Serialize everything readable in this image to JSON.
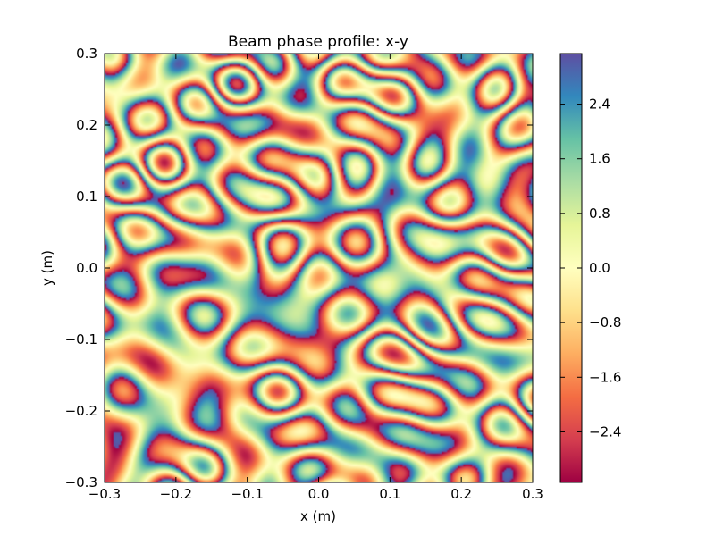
{
  "chart_data": {
    "type": "heatmap",
    "title": "Beam phase profile: x-y",
    "xlabel": "x (m)",
    "ylabel": "y (m)",
    "xlim": [
      -0.3,
      0.3
    ],
    "ylim": [
      -0.3,
      0.3
    ],
    "x_ticks": [
      -0.3,
      -0.2,
      -0.1,
      0.0,
      0.1,
      0.2,
      0.3
    ],
    "x_tick_labels": [
      "−0.3",
      "−0.2",
      "−0.1",
      "0.0",
      "0.1",
      "0.2",
      "0.3"
    ],
    "y_ticks": [
      -0.3,
      -0.2,
      -0.1,
      0.0,
      0.1,
      0.2,
      0.3
    ],
    "y_tick_labels": [
      "−0.3",
      "−0.2",
      "−0.1",
      "0.0",
      "0.1",
      "0.2",
      "0.3"
    ],
    "colorbar": {
      "range": [
        -3.14,
        3.14
      ],
      "ticks": [
        -2.4,
        -1.6,
        -0.8,
        0.0,
        0.8,
        1.6,
        2.4
      ],
      "tick_labels": [
        "−2.4",
        "−1.6",
        "−0.8",
        "0.0",
        "0.8",
        "1.6",
        "2.4"
      ],
      "colormap": "Spectral"
    },
    "colormap_stops": [
      "#9e0142",
      "#d53e4f",
      "#f46d43",
      "#fdae61",
      "#fee08b",
      "#ffffbf",
      "#e6f598",
      "#abdda4",
      "#66c2a5",
      "#3288bd",
      "#5e4fa2"
    ],
    "grid": false,
    "legend": "none"
  }
}
